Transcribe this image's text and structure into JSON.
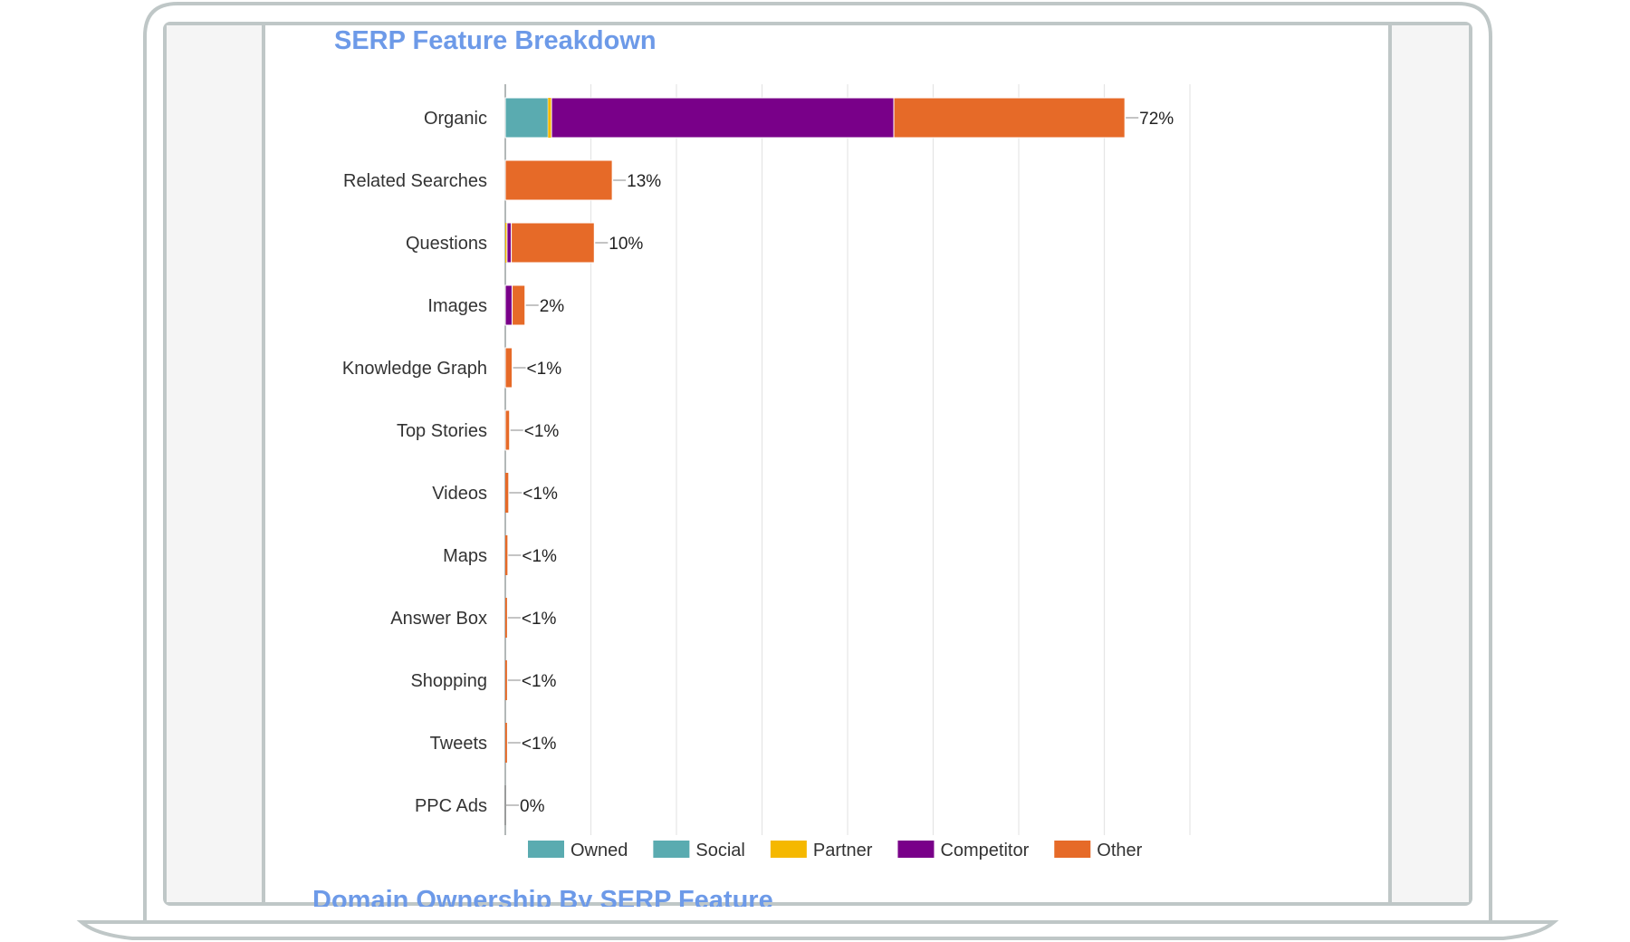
{
  "page": {
    "title": "SERP Feature Breakdown",
    "next_section_title": "Domain Ownership By SERP Feature"
  },
  "colors": {
    "frame_stroke": "#bfc7c7",
    "side_panel": "#f5f5f5",
    "heading": "#6d9ae8",
    "grid": "#e5e5e5",
    "Owned": "#5aabb0",
    "Social": "#5aabb0",
    "Partner": "#f5b800",
    "Competitor": "#790089",
    "Other": "#e66a28"
  },
  "chart_data": {
    "type": "bar",
    "orientation": "horizontal",
    "stacked": true,
    "title": "SERP Feature Breakdown",
    "categories": [
      "Organic",
      "Related Searches",
      "Questions",
      "Images",
      "Knowledge Graph",
      "Top Stories",
      "Videos",
      "Maps",
      "Answer Box",
      "Shopping",
      "Tweets",
      "PPC Ads"
    ],
    "totals_labels": [
      "72%",
      "13%",
      "10%",
      "2%",
      "<1%",
      "<1%",
      "<1%",
      "<1%",
      "<1%",
      "<1%",
      "<1%",
      "0%"
    ],
    "series": [
      {
        "name": "Owned",
        "values": [
          0,
          0,
          0,
          0,
          0,
          0,
          0,
          0,
          0,
          0,
          0,
          0
        ]
      },
      {
        "name": "Social",
        "values": [
          5.0,
          0,
          0,
          0,
          0,
          0,
          0,
          0,
          0,
          0,
          0,
          0
        ]
      },
      {
        "name": "Partner",
        "values": [
          0.4,
          0,
          0.2,
          0,
          0,
          0,
          0,
          0,
          0,
          0,
          0,
          0
        ]
      },
      {
        "name": "Competitor",
        "values": [
          40.0,
          0,
          0.5,
          0.8,
          0,
          0,
          0,
          0,
          0,
          0,
          0,
          0
        ]
      },
      {
        "name": "Other",
        "values": [
          27.0,
          12.5,
          9.7,
          1.5,
          0.8,
          0.5,
          0.35,
          0.25,
          0.2,
          0.2,
          0.2,
          0
        ]
      }
    ],
    "xlim": [
      0,
      80
    ],
    "x_tick_step": 10,
    "grid": true,
    "tick_labels_shown": false,
    "legend_position": "bottom",
    "legend": [
      "Owned",
      "Social",
      "Partner",
      "Competitor",
      "Other"
    ]
  }
}
